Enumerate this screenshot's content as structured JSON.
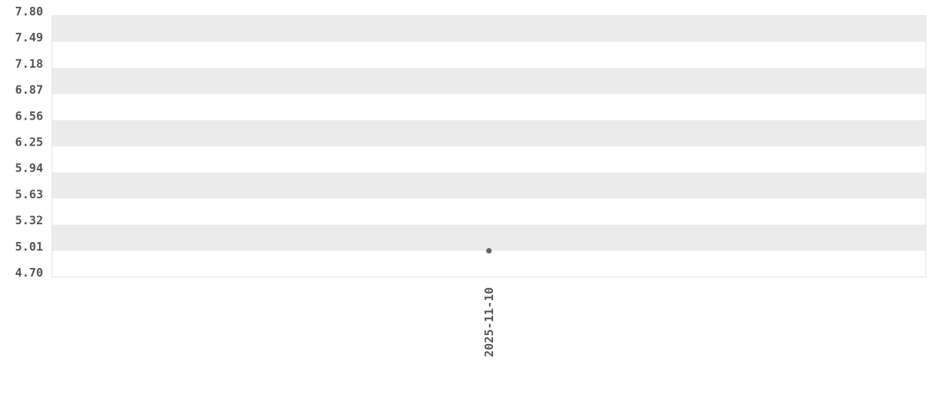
{
  "chart_data": {
    "type": "scatter",
    "title": "",
    "xlabel": "",
    "ylabel": "",
    "categories": [
      "2025-11-10"
    ],
    "series": [
      {
        "values": [
          5.01
        ]
      }
    ],
    "ylim": [
      4.7,
      7.8
    ],
    "yticks": [
      "7.80",
      "7.49",
      "7.18",
      "6.87",
      "6.56",
      "6.25",
      "5.94",
      "5.63",
      "5.32",
      "5.01",
      "4.70"
    ],
    "grid": "alternating horizontal bands",
    "colors": {
      "band": "#ebebeb",
      "point": "#666666",
      "text": "#555555",
      "border": "#dddddd"
    }
  }
}
